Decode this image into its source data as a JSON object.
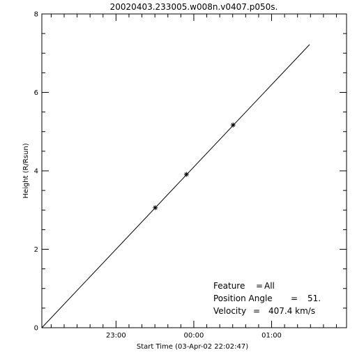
{
  "chart_data": {
    "type": "line",
    "title": "20020403.233005.w008n.v0407.p050s.",
    "xlabel": "Start Time (03-Apr-02 22:02:47)",
    "ylabel": "Height (R/Rsun)",
    "x_unit": "minutes after 22:02:47",
    "xlim": [
      0,
      235
    ],
    "ylim": [
      0,
      8
    ],
    "x_ticks": [
      {
        "label": "23:00",
        "value": 57.2
      },
      {
        "label": "00:00",
        "value": 117.2
      },
      {
        "label": "01:00",
        "value": 177.2
      }
    ],
    "x_minor_ticks": [
      7.2,
      17.2,
      27.2,
      37.2,
      47.2,
      67.2,
      77.2,
      87.2,
      97.2,
      107.2,
      127.2,
      137.2,
      147.2,
      157.2,
      167.2,
      187.2,
      197.2,
      207.2,
      217.2,
      227.2
    ],
    "y_ticks": [
      0,
      2,
      4,
      6,
      8
    ],
    "y_minor_ticks": [
      0.5,
      1,
      1.5,
      2.5,
      3,
      3.5,
      4.5,
      5,
      5.5,
      6.5,
      7,
      7.5
    ],
    "series": [
      {
        "kind": "fit",
        "x": [
          0,
          206.5
        ],
        "y": [
          0,
          7.22
        ]
      },
      {
        "kind": "measured",
        "x": [
          87.5,
          111.5,
          147.5
        ],
        "y": [
          3.06,
          3.91,
          5.17
        ]
      }
    ],
    "annotations": [
      {
        "label": "Feature",
        "sep": "=",
        "value": "All"
      },
      {
        "label": "Position Angle",
        "sep": "=",
        "value": "51."
      },
      {
        "label": "Velocity",
        "sep": "=",
        "value": "407.4 km/s"
      }
    ]
  }
}
